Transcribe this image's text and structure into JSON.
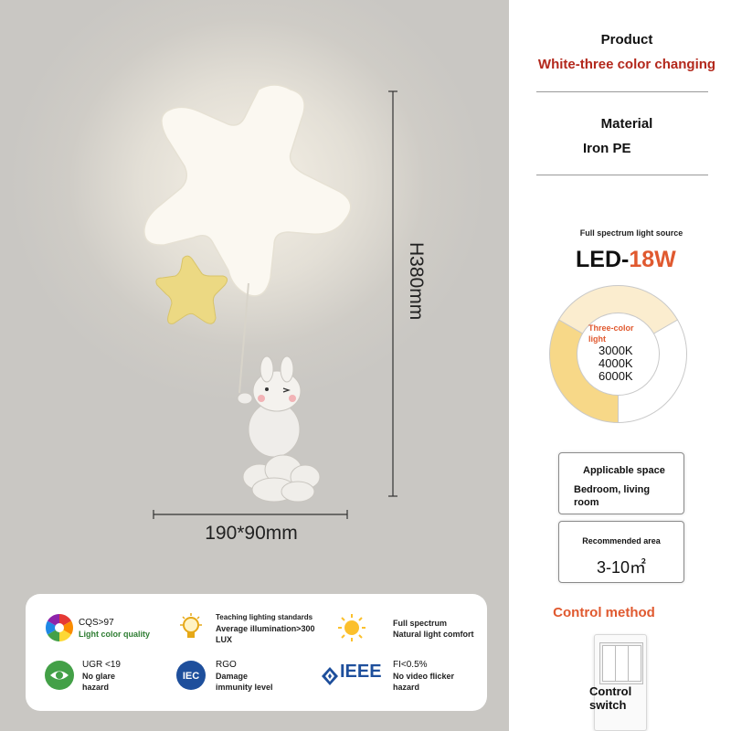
{
  "dimensions": {
    "height": "H380mm",
    "width_depth": "190*90mm"
  },
  "product": {
    "heading": "Product",
    "value": "White-three color changing",
    "value_color": "#b3281c"
  },
  "material": {
    "heading": "Material",
    "value": "Iron PE"
  },
  "led": {
    "caption": "Full spectrum light source",
    "prefix": "LED-",
    "power": "18W",
    "power_color": "#e0592f"
  },
  "donut": {
    "label": "Three-color light",
    "temps": [
      "3000K",
      "4000K",
      "6000K"
    ],
    "colors": [
      "#f7d888",
      "#fbedcf",
      "#ffffff"
    ],
    "label_color": "#e0592f"
  },
  "applicable_space": {
    "heading": "Applicable space",
    "value": "Bedroom, living room"
  },
  "recommended_area": {
    "heading": "Recommended area",
    "value": "3-10㎡"
  },
  "control": {
    "heading": "Control method",
    "heading_color": "#e0592f",
    "switch_label": "Control switch"
  },
  "features": [
    {
      "icon": "color-wheel-icon",
      "line1": "CQS>97",
      "line2": "Light color quality",
      "line3": ""
    },
    {
      "icon": "bulb-icon",
      "line1": "Teaching lighting standards",
      "line2": "Average illumination>300",
      "line3": "LUX"
    },
    {
      "icon": "sun-icon",
      "line1": "Full spectrum",
      "line2": "Natural light comfort",
      "line3": ""
    },
    {
      "icon": "eye-icon",
      "line1": "UGR <19",
      "line2": "No glare",
      "line3": "hazard"
    },
    {
      "icon": "iec-icon",
      "line1": "RGO",
      "line2": "Damage",
      "line3": "immunity level"
    },
    {
      "icon": "ieee-icon",
      "line1": "FI<0.5%",
      "line2": "No video flicker",
      "line3": "hazard"
    }
  ],
  "ieee_text": "IEEE",
  "iec_text": "IEC"
}
